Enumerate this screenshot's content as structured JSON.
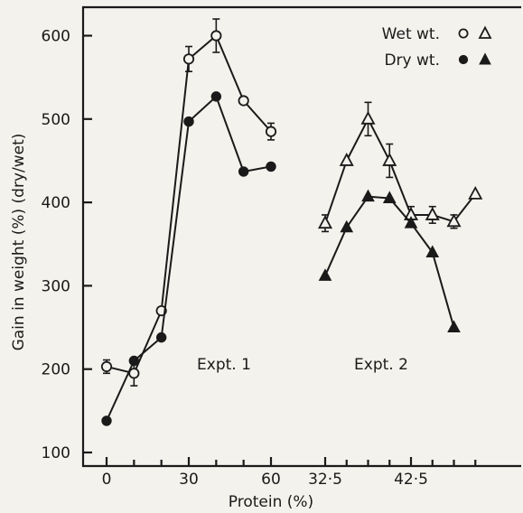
{
  "chart_data": {
    "type": "line",
    "xlabel": "Protein (%)",
    "ylabel": "Gain in weight (%) (dry/wet)",
    "ylim": [
      80,
      640
    ],
    "y_ticks": [
      "100",
      "200",
      "300",
      "400",
      "500",
      "600"
    ],
    "panels": [
      {
        "label": "Expt. 1",
        "x_range": [
          0,
          60
        ],
        "x_ticks": [
          "0",
          "30",
          "60"
        ],
        "series": [
          {
            "name": "Wet wt.",
            "marker": "open-circle",
            "points": [
              [
                0,
                203
              ],
              [
                10,
                195
              ],
              [
                20,
                270
              ],
              [
                30,
                572
              ],
              [
                40,
                600
              ],
              [
                50,
                522
              ],
              [
                60,
                485
              ]
            ],
            "errors": [
              [
                0,
                8
              ],
              [
                10,
                15
              ],
              [
                20,
                0
              ],
              [
                30,
                15
              ],
              [
                40,
                20
              ],
              [
                50,
                0
              ],
              [
                60,
                10
              ]
            ]
          },
          {
            "name": "Dry wt.",
            "marker": "filled-circle",
            "points": [
              [
                0,
                138
              ],
              [
                10,
                210
              ],
              [
                20,
                238
              ],
              [
                30,
                497
              ],
              [
                40,
                527
              ],
              [
                50,
                437
              ],
              [
                60,
                443
              ]
            ],
            "errors": []
          }
        ]
      },
      {
        "label": "Expt. 2",
        "x_range": [
          32.5,
          52.5
        ],
        "x_ticks": [
          "32·5",
          "42·5"
        ],
        "series": [
          {
            "name": "Wet wt.",
            "marker": "open-triangle",
            "points": [
              [
                32.5,
                375
              ],
              [
                35,
                450
              ],
              [
                37.5,
                500
              ],
              [
                40,
                450
              ],
              [
                42.5,
                385
              ],
              [
                45,
                385
              ],
              [
                47.5,
                377
              ],
              [
                50,
                410
              ]
            ],
            "errors": [
              [
                32.5,
                10
              ],
              [
                35,
                0
              ],
              [
                37.5,
                20
              ],
              [
                40,
                20
              ],
              [
                42.5,
                10
              ],
              [
                45,
                10
              ],
              [
                47.5,
                8
              ],
              [
                50,
                0
              ]
            ]
          },
          {
            "name": "Dry wt.",
            "marker": "filled-triangle",
            "points": [
              [
                32.5,
                312
              ],
              [
                35,
                370
              ],
              [
                37.5,
                407
              ],
              [
                40,
                405
              ],
              [
                42.5,
                375
              ],
              [
                45,
                340
              ],
              [
                47.5,
                250
              ]
            ],
            "errors": []
          }
        ]
      }
    ],
    "legend": {
      "placement": "top-right",
      "entries": [
        {
          "label": "Wet wt.",
          "markers": [
            "open-circle",
            "open-triangle"
          ]
        },
        {
          "label": "Dry wt.",
          "markers": [
            "filled-circle",
            "filled-triangle"
          ]
        }
      ]
    },
    "grid": false
  }
}
